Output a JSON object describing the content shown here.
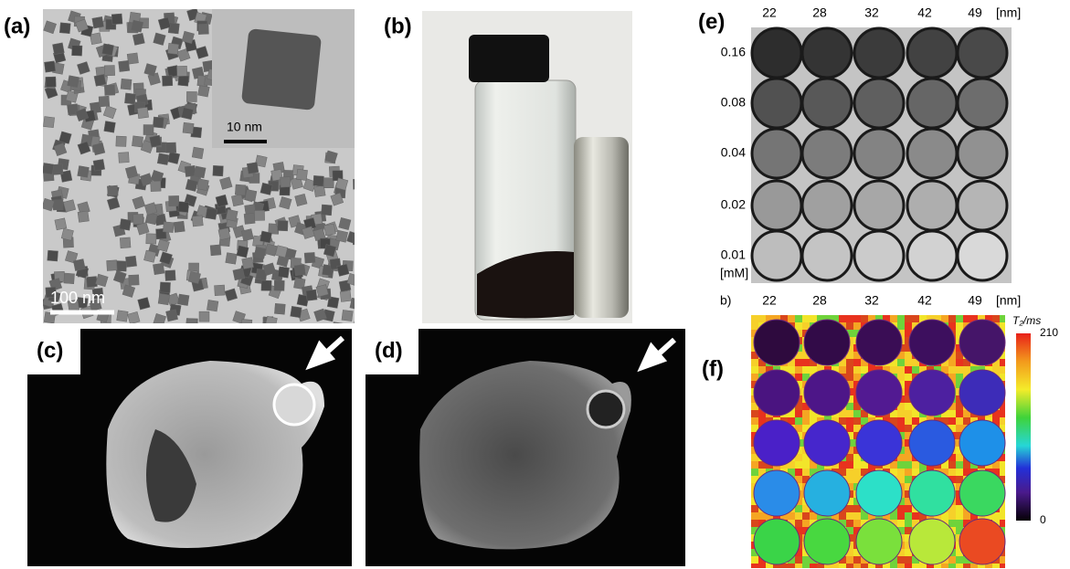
{
  "panels": {
    "a": {
      "label": "(a)",
      "inset_scale": "10 nm",
      "scale": "100 nm"
    },
    "b": {
      "label": "(b)"
    },
    "c": {
      "label": "(c)"
    },
    "d": {
      "label": "(d)"
    },
    "e": {
      "label": "(e)",
      "columns": [
        "22",
        "28",
        "32",
        "42",
        "49"
      ],
      "column_unit": "[nm]",
      "rows": [
        "0.16",
        "0.08",
        "0.04",
        "0.02",
        "0.01"
      ],
      "row_unit": "[mM]"
    },
    "f": {
      "label": "(f)",
      "sublabel": "b)",
      "columns": [
        "22",
        "28",
        "32",
        "42",
        "49"
      ],
      "column_unit": "[nm]",
      "colorbar": {
        "title": "T₂/ms",
        "max": 210,
        "min": 0
      }
    }
  }
}
